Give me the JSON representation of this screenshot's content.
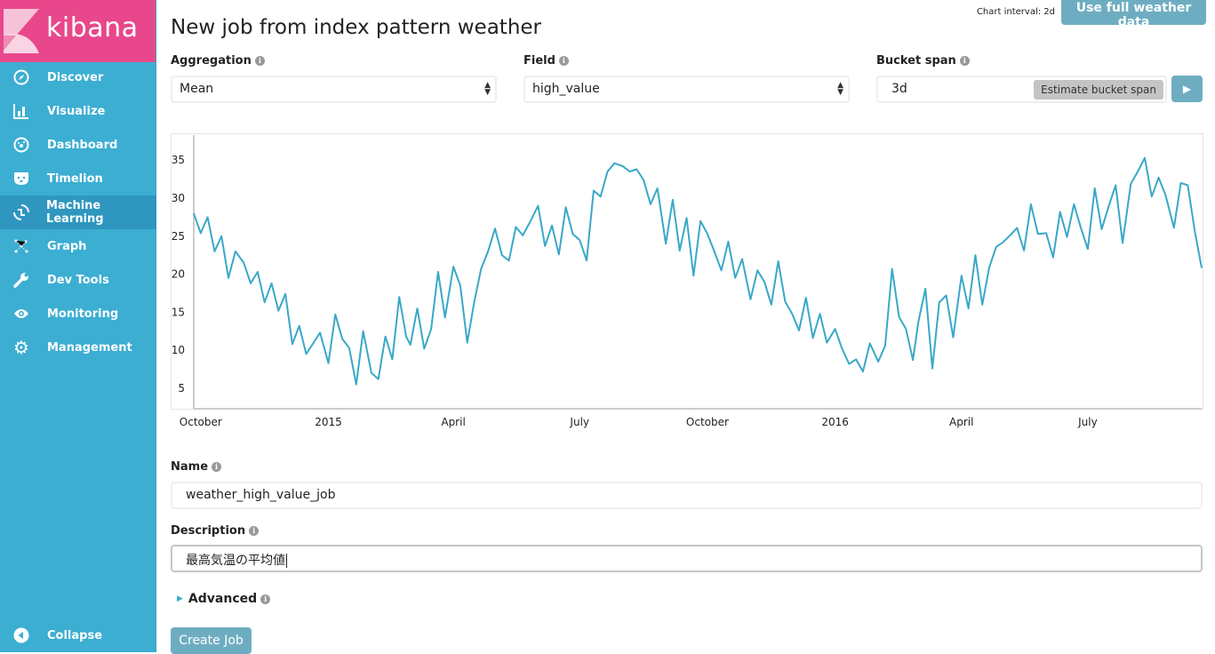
{
  "brand": {
    "name": "kibana",
    "color": "#e8488b"
  },
  "sidebar": {
    "color": "#3caed2",
    "items": [
      {
        "label": "Discover",
        "icon": "compass-icon"
      },
      {
        "label": "Visualize",
        "icon": "bar-chart-icon"
      },
      {
        "label": "Dashboard",
        "icon": "dashboard-icon"
      },
      {
        "label": "Timelion",
        "icon": "timelion-icon"
      },
      {
        "label": "Machine Learning",
        "icon": "machine-learning-icon",
        "active": true
      },
      {
        "label": "Graph",
        "icon": "graph-icon"
      },
      {
        "label": "Dev Tools",
        "icon": "wrench-icon"
      },
      {
        "label": "Monitoring",
        "icon": "eye-icon"
      },
      {
        "label": "Management",
        "icon": "gear-icon"
      }
    ],
    "collapse_label": "Collapse"
  },
  "header": {
    "title": "New job from index pattern weather",
    "chart_interval": "Chart interval: 2d",
    "full_data_button": "Use full weather data"
  },
  "form": {
    "aggregation": {
      "label": "Aggregation",
      "value": "Mean"
    },
    "field": {
      "label": "Field",
      "value": "high_value"
    },
    "bucket_span": {
      "label": "Bucket span",
      "value": "3d",
      "estimate_button": "Estimate bucket span"
    },
    "name": {
      "label": "Name",
      "value": "weather_high_value_job"
    },
    "description": {
      "label": "Description",
      "value": "最高気温の平均値"
    },
    "advanced_label": "Advanced",
    "create_button": "Create Job"
  },
  "chart_data": {
    "type": "line",
    "line_color": "#3aa8c8",
    "ylim": [
      2.3,
      38.3
    ],
    "xlim": [
      "2014-09-26",
      "2016-09-21"
    ],
    "y_ticks": [
      5,
      10,
      15,
      20,
      25,
      30,
      35
    ],
    "x_ticks": [
      {
        "date": "2014-10-01",
        "label": "October"
      },
      {
        "date": "2015-01-01",
        "label": "2015"
      },
      {
        "date": "2015-04-01",
        "label": "April"
      },
      {
        "date": "2015-07-01",
        "label": "July"
      },
      {
        "date": "2015-10-01",
        "label": "October"
      },
      {
        "date": "2016-01-01",
        "label": "2016"
      },
      {
        "date": "2016-04-01",
        "label": "April"
      },
      {
        "date": "2016-07-01",
        "label": "July"
      }
    ],
    "grid": false,
    "x": [
      "2014-09-26",
      "2014-10-01",
      "2014-10-06",
      "2014-10-11",
      "2014-10-16",
      "2014-10-21",
      "2014-10-26",
      "2014-11-01",
      "2014-11-06",
      "2014-11-11",
      "2014-11-16",
      "2014-11-21",
      "2014-11-26",
      "2014-12-01",
      "2014-12-06",
      "2014-12-11",
      "2014-12-16",
      "2014-12-21",
      "2014-12-26",
      "2015-01-01",
      "2015-01-06",
      "2015-01-11",
      "2015-01-16",
      "2015-01-21",
      "2015-01-26",
      "2015-02-01",
      "2015-02-06",
      "2015-02-11",
      "2015-02-16",
      "2015-02-21",
      "2015-02-26",
      "2015-03-01",
      "2015-03-06",
      "2015-03-11",
      "2015-03-16",
      "2015-03-21",
      "2015-03-26",
      "2015-04-01",
      "2015-04-06",
      "2015-04-11",
      "2015-04-16",
      "2015-04-21",
      "2015-04-26",
      "2015-05-01",
      "2015-05-06",
      "2015-05-11",
      "2015-05-16",
      "2015-05-21",
      "2015-05-26",
      "2015-06-01",
      "2015-06-06",
      "2015-06-11",
      "2015-06-16",
      "2015-06-21",
      "2015-06-26",
      "2015-07-01",
      "2015-07-06",
      "2015-07-11",
      "2015-07-16",
      "2015-07-21",
      "2015-07-26",
      "2015-08-01",
      "2015-08-06",
      "2015-08-11",
      "2015-08-16",
      "2015-08-21",
      "2015-08-26",
      "2015-09-01",
      "2015-09-06",
      "2015-09-11",
      "2015-09-16",
      "2015-09-21",
      "2015-09-26",
      "2015-10-01",
      "2015-10-06",
      "2015-10-11",
      "2015-10-16",
      "2015-10-21",
      "2015-10-26",
      "2015-11-01",
      "2015-11-06",
      "2015-11-11",
      "2015-11-16",
      "2015-11-21",
      "2015-11-26",
      "2015-12-01",
      "2015-12-06",
      "2015-12-11",
      "2015-12-16",
      "2015-12-21",
      "2015-12-26",
      "2016-01-01",
      "2016-01-06",
      "2016-01-11",
      "2016-01-16",
      "2016-01-21",
      "2016-01-26",
      "2016-02-01",
      "2016-02-06",
      "2016-02-11",
      "2016-02-16",
      "2016-02-21",
      "2016-02-26",
      "2016-03-01",
      "2016-03-06",
      "2016-03-11",
      "2016-03-16",
      "2016-03-21",
      "2016-03-26",
      "2016-04-01",
      "2016-04-06",
      "2016-04-11",
      "2016-04-16",
      "2016-04-21",
      "2016-04-26",
      "2016-05-01",
      "2016-05-06",
      "2016-05-11",
      "2016-05-16",
      "2016-05-21",
      "2016-05-26",
      "2016-06-01",
      "2016-06-06",
      "2016-06-11",
      "2016-06-16",
      "2016-06-21",
      "2016-06-26",
      "2016-07-01",
      "2016-07-06",
      "2016-07-11",
      "2016-07-16",
      "2016-07-21",
      "2016-07-26",
      "2016-08-01",
      "2016-08-06",
      "2016-08-11",
      "2016-08-16",
      "2016-08-21",
      "2016-08-26",
      "2016-09-01",
      "2016-09-06",
      "2016-09-11",
      "2016-09-16",
      "2016-09-21"
    ],
    "y": [
      28,
      25.4,
      27.5,
      23,
      25,
      19.5,
      23,
      21.5,
      18.8,
      20.3,
      16.3,
      18.8,
      15.2,
      17.4,
      10.8,
      13.2,
      9.5,
      10.9,
      12.3,
      8.3,
      14.7,
      11.5,
      10.3,
      5.5,
      12.5,
      7,
      6.2,
      11.8,
      8.8,
      17,
      11.8,
      10.7,
      15.5,
      10.2,
      12.8,
      20.3,
      14.3,
      21,
      18.5,
      11,
      16.3,
      20.7,
      23,
      26,
      22.5,
      21.8,
      26.2,
      25.1,
      26.8,
      29,
      23.7,
      26.4,
      22.6,
      28.8,
      25.3,
      24.5,
      21.8,
      31,
      30.2,
      33.5,
      34.6,
      34.2,
      33.5,
      33.8,
      32.4,
      29.2,
      31.3,
      24,
      29.8,
      23.1,
      27.4,
      19.8,
      27,
      25.3,
      23,
      20.5,
      24.3,
      19.5,
      22,
      16.7,
      20.5,
      19,
      16,
      21.7,
      16.4,
      14.8,
      12.6,
      16.9,
      11.6,
      14.8,
      11,
      12.8,
      10.2,
      8.2,
      8.8,
      7.2,
      10.9,
      8.5,
      10.6,
      20.7,
      14.4,
      12.8,
      8.7,
      13.8,
      18.1,
      7.6,
      16.3,
      17.2,
      11.7,
      19.8,
      15.5,
      22.5,
      16,
      20.9,
      23.6,
      24.2,
      25.1,
      26.1,
      23.1,
      29.2,
      25.3,
      25.4,
      22.2,
      28.2,
      24.9,
      29.2,
      26.1,
      23.3,
      31.3,
      25.9,
      28.9,
      31.7,
      24.1,
      31.9,
      33.5,
      35.3,
      30.2,
      32.7,
      30.4,
      26.1,
      32,
      31.7,
      25.7,
      20.8
    ]
  }
}
